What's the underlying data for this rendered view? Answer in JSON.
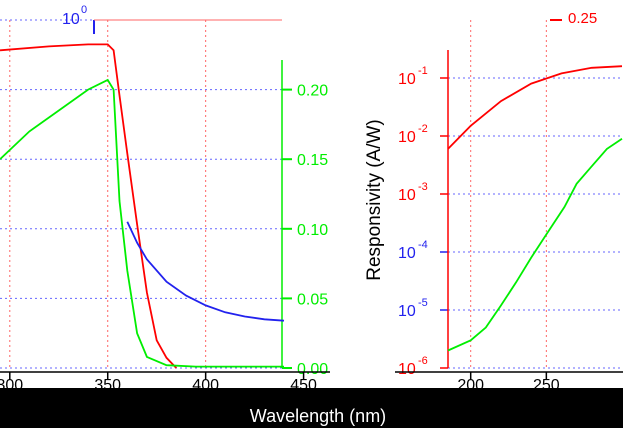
{
  "colors": {
    "red": "#ff0000",
    "green": "#00ee00",
    "blue": "#2222ee",
    "grid_red": "#ff6666",
    "grid_blue": "#6666ff",
    "band": "#000000",
    "band_text": "#ffffff"
  },
  "chart_data": [
    {
      "type": "line",
      "panel": "left",
      "xlabel": "Wavelength (nm)",
      "xlim": [
        295,
        440
      ],
      "x_ticks": [
        "300",
        "350",
        "400",
        "450"
      ],
      "x_tick_values": [
        300,
        350,
        400,
        450
      ],
      "left_axis": {
        "scale": "log",
        "ylim": [
          1e-06,
          1
        ],
        "tick_label": "10",
        "tick_exp": "0",
        "color": "#2222ee"
      },
      "right_axis": {
        "scale": "linear",
        "ylim": [
          0,
          0.25
        ],
        "ticks": [
          "0.00",
          "0.05",
          "0.10",
          "0.15",
          "0.20",
          "0.25"
        ],
        "tick_values": [
          0,
          0.05,
          0.1,
          0.15,
          0.2,
          0.25
        ]
      },
      "grid": true,
      "series": [
        {
          "color": "#ff0000",
          "axis": "left",
          "x": [
            295,
            320,
            340,
            350,
            353,
            356,
            360,
            365,
            370,
            375,
            380,
            385
          ],
          "y": [
            0.3,
            0.35,
            0.38,
            0.38,
            0.3,
            0.05,
            0.005,
            0.0003,
            2e-05,
            3e-06,
            1.5e-06,
            1e-06
          ]
        },
        {
          "color": "#00ee00",
          "axis": "right",
          "x": [
            295,
            310,
            325,
            340,
            350,
            353,
            356,
            360,
            365,
            370,
            380,
            395,
            410,
            440
          ],
          "y": [
            0.15,
            0.17,
            0.185,
            0.2,
            0.207,
            0.2,
            0.12,
            0.07,
            0.025,
            0.008,
            0.002,
            0.001,
            0.001,
            0.001
          ]
        },
        {
          "color": "#2222ee",
          "axis": "right",
          "x": [
            360,
            365,
            370,
            380,
            390,
            400,
            410,
            420,
            430,
            440
          ],
          "y": [
            0.105,
            0.09,
            0.078,
            0.062,
            0.052,
            0.045,
            0.04,
            0.037,
            0.035,
            0.034
          ]
        }
      ]
    },
    {
      "type": "line",
      "panel": "right",
      "ylabel": "Responsivity (A/W)",
      "xlim": [
        185,
        300
      ],
      "x_ticks": [
        "200",
        "250"
      ],
      "x_tick_values": [
        200,
        250
      ],
      "y_axis": {
        "scale": "log",
        "ylim": [
          1e-06,
          1
        ],
        "ticks": [
          "10",
          "10",
          "10",
          "10",
          "10",
          "10"
        ],
        "tick_exps": [
          "-1",
          "-2",
          "-3",
          "-4",
          "-5",
          "-6"
        ],
        "tick_values": [
          0.1,
          0.01,
          0.001,
          0.0001,
          1e-05,
          1e-06
        ]
      },
      "grid": true,
      "series": [
        {
          "color": "#ff0000",
          "x": [
            185,
            200,
            220,
            240,
            260,
            280,
            300
          ],
          "y": [
            0.006,
            0.015,
            0.04,
            0.08,
            0.12,
            0.15,
            0.16
          ]
        },
        {
          "color": "#00ee00",
          "x": [
            185,
            200,
            210,
            220,
            230,
            240,
            250,
            262,
            270,
            280,
            290,
            300
          ],
          "y": [
            2e-06,
            3e-06,
            5e-06,
            1.2e-05,
            3e-05,
            8e-05,
            0.0002,
            0.0006,
            0.0015,
            0.003,
            0.006,
            0.009
          ]
        }
      ]
    }
  ]
}
